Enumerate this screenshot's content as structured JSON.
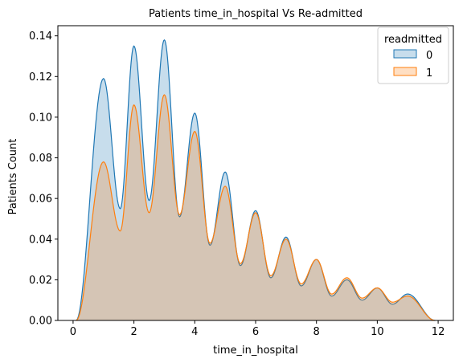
{
  "chart_data": {
    "type": "area",
    "title": "Patients time_in_hospital Vs Re-admitted",
    "xlabel": "time_in_hospital",
    "ylabel": "Patients Count",
    "xlim": [
      -0.5,
      12.5
    ],
    "ylim": [
      0,
      0.145
    ],
    "xticks": [
      0,
      2,
      4,
      6,
      8,
      10,
      12
    ],
    "yticks": [
      0.0,
      0.02,
      0.04,
      0.06,
      0.08,
      0.1,
      0.12,
      0.14
    ],
    "ytick_labels": [
      "0.00",
      "0.02",
      "0.04",
      "0.06",
      "0.08",
      "0.10",
      "0.12",
      "0.14"
    ],
    "grid": false,
    "legend": {
      "title": "readmitted",
      "placement": "top-right"
    },
    "series": [
      {
        "name": "0",
        "color": "#1f77b4",
        "peaks": [
          {
            "x": 1,
            "y": 0.119
          },
          {
            "x": 2,
            "y": 0.135
          },
          {
            "x": 3,
            "y": 0.138
          },
          {
            "x": 4,
            "y": 0.102
          },
          {
            "x": 5,
            "y": 0.073
          },
          {
            "x": 6,
            "y": 0.054
          },
          {
            "x": 7,
            "y": 0.041
          },
          {
            "x": 8,
            "y": 0.03
          },
          {
            "x": 9,
            "y": 0.02
          },
          {
            "x": 10,
            "y": 0.016
          },
          {
            "x": 11,
            "y": 0.013
          }
        ],
        "troughs": [
          {
            "x": 1.55,
            "y": 0.055
          },
          {
            "x": 2.5,
            "y": 0.059
          },
          {
            "x": 3.5,
            "y": 0.051
          },
          {
            "x": 4.5,
            "y": 0.037
          },
          {
            "x": 5.5,
            "y": 0.027
          },
          {
            "x": 6.5,
            "y": 0.021
          },
          {
            "x": 7.5,
            "y": 0.017
          },
          {
            "x": 8.5,
            "y": 0.012
          },
          {
            "x": 9.5,
            "y": 0.01
          },
          {
            "x": 10.5,
            "y": 0.008
          }
        ]
      },
      {
        "name": "1",
        "color": "#ff7f0e",
        "peaks": [
          {
            "x": 1,
            "y": 0.078
          },
          {
            "x": 2,
            "y": 0.106
          },
          {
            "x": 3,
            "y": 0.111
          },
          {
            "x": 4,
            "y": 0.093
          },
          {
            "x": 5,
            "y": 0.066
          },
          {
            "x": 6,
            "y": 0.053
          },
          {
            "x": 7,
            "y": 0.04
          },
          {
            "x": 8,
            "y": 0.03
          },
          {
            "x": 9,
            "y": 0.021
          },
          {
            "x": 10,
            "y": 0.016
          },
          {
            "x": 11,
            "y": 0.012
          }
        ],
        "troughs": [
          {
            "x": 1.55,
            "y": 0.044
          },
          {
            "x": 2.5,
            "y": 0.053
          },
          {
            "x": 3.5,
            "y": 0.052
          },
          {
            "x": 4.5,
            "y": 0.038
          },
          {
            "x": 5.5,
            "y": 0.028
          },
          {
            "x": 6.5,
            "y": 0.022
          },
          {
            "x": 7.5,
            "y": 0.018
          },
          {
            "x": 8.5,
            "y": 0.013
          },
          {
            "x": 9.5,
            "y": 0.011
          },
          {
            "x": 10.5,
            "y": 0.009
          }
        ]
      }
    ]
  }
}
